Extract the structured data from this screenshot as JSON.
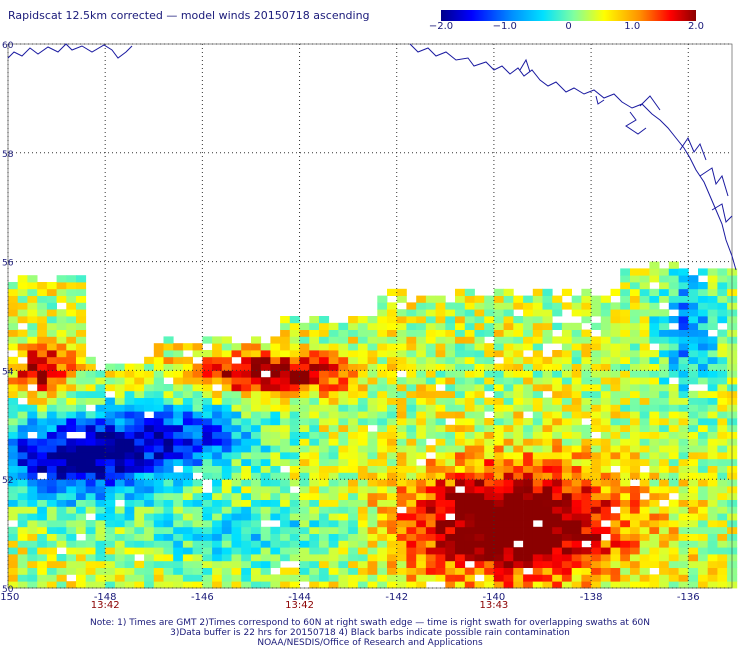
{
  "title": "Rapidscat 12.5km corrected — model winds 20150718 ascending",
  "colorbar": {
    "ticks": [
      {
        "label": "−2.0",
        "value": -2.0
      },
      {
        "label": "−1.0",
        "value": -1.0
      },
      {
        "label": "0",
        "value": 0
      },
      {
        "label": "1.0",
        "value": 1.0
      },
      {
        "label": "2.0",
        "value": 2.0
      }
    ],
    "colors": [
      "#00008b",
      "#0000ff",
      "#0090ff",
      "#00e0ff",
      "#7fffa0",
      "#ffff00",
      "#ff9000",
      "#ff0000",
      "#8b0000"
    ]
  },
  "lat_ticks": [
    {
      "label": "60",
      "value": 60
    },
    {
      "label": "58",
      "value": 58
    },
    {
      "label": "56",
      "value": 56
    },
    {
      "label": "54",
      "value": 54
    },
    {
      "label": "52",
      "value": 52
    },
    {
      "label": "50",
      "value": 50
    }
  ],
  "lon_ticks": [
    {
      "label": "-150",
      "value": -150
    },
    {
      "label": "-148",
      "value": -148
    },
    {
      "label": "-146",
      "value": -146
    },
    {
      "label": "-144",
      "value": -144
    },
    {
      "label": "-142",
      "value": -142
    },
    {
      "label": "-140",
      "value": -140
    },
    {
      "label": "-138",
      "value": -138
    },
    {
      "label": "-136",
      "value": -136
    }
  ],
  "time_labels": [
    {
      "label": "13:42",
      "lon": -148
    },
    {
      "label": "13:42",
      "lon": -144
    },
    {
      "label": "13:43",
      "lon": -140
    }
  ],
  "notes": [
    "Note: 1) Times are GMT 2)Times correspond to 60N at right swath edge — time is right swath for overlapping swaths at 60N",
    "3)Data buffer is 22 hrs for 20150718 4) Black barbs indicate possible rain contamination",
    "NOAA/NESDIS/Office of Research and Applications"
  ]
}
